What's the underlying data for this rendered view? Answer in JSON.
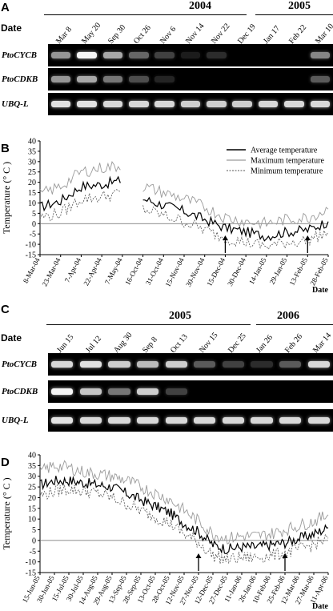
{
  "panelA": {
    "label": "A",
    "years": [
      "2004",
      "2005"
    ],
    "date_header": "Date",
    "dates": [
      "Mar 8",
      "May 20",
      "Sep 30",
      "Oct 26",
      "Nov 6",
      "Nov 14",
      "Nov 22",
      "Dec 19",
      "Jan 17",
      "Feb 22",
      "Mar 10"
    ],
    "genes": [
      "PtoCYCB",
      "PtoCDKB",
      "UBQ-L"
    ],
    "intensity": [
      [
        0.55,
        0.95,
        0.6,
        0.4,
        0.25,
        0.05,
        0.15,
        0.0,
        0.0,
        0.0,
        0.5
      ],
      [
        0.55,
        0.6,
        0.45,
        0.3,
        0.1,
        0.0,
        0.0,
        0.0,
        0.0,
        0.0,
        0.35
      ],
      [
        0.85,
        0.85,
        0.8,
        0.8,
        0.8,
        0.75,
        0.75,
        0.75,
        0.8,
        0.8,
        0.8
      ]
    ]
  },
  "panelB": {
    "label": "B",
    "ylabel": "Temperature (° C )",
    "xlabel": "Date",
    "yticks": [
      "40",
      "35",
      "30",
      "25",
      "20",
      "15",
      "10",
      "5",
      "0",
      "-5",
      "-10",
      "-15"
    ],
    "xticks": [
      "8-Mar-04",
      "23-Mar-04",
      "7-Apr-04",
      "22-Apr-04",
      "7-May-04",
      "16-Oct-04",
      "31-Oct-04",
      "15-Nov-04",
      "30-Nov-04",
      "15-Dec-04",
      "30-Dec-04",
      "14-Jan-05",
      "29-Jan-05",
      "13-Feb-05",
      "28-Feb-05"
    ],
    "legend": [
      "Average temperature",
      "Maximum temperature",
      "Minimum temperature"
    ]
  },
  "panelC": {
    "label": "C",
    "years": [
      "2005",
      "2006"
    ],
    "date_header": "Date",
    "dates": [
      "Jun 15",
      "Jul 12",
      "Aug 30",
      "Sep 8",
      "Oct 13",
      "Nov 15",
      "Dec 25",
      "Jan 26",
      "Feb 26",
      "Mar 14"
    ],
    "genes": [
      "PtoCYCB",
      "PtoCDKB",
      "UBQ-L"
    ],
    "intensity": [
      [
        0.8,
        0.85,
        0.75,
        0.65,
        0.75,
        0.35,
        0.25,
        0.15,
        0.35,
        0.8
      ],
      [
        0.95,
        0.7,
        0.45,
        0.75,
        0.25,
        0.0,
        0.0,
        0.0,
        0.0,
        0.0
      ],
      [
        0.85,
        0.8,
        0.8,
        0.8,
        0.8,
        0.8,
        0.8,
        0.8,
        0.8,
        0.8
      ]
    ]
  },
  "panelD": {
    "label": "D",
    "ylabel": "Temperature (° C )",
    "xlabel": "Date",
    "yticks": [
      "40",
      "35",
      "30",
      "25",
      "20",
      "15",
      "10",
      "5",
      "0",
      "-5",
      "-10",
      "-15"
    ],
    "xticks": [
      "15-Jun-05",
      "30-Jun-05",
      "15-Jul-05",
      "30-Jul-05",
      "14-Aug-05",
      "29-Aug-05",
      "13-Sep-05",
      "28-Sep-05",
      "13-Oct-05",
      "28-Oct-05",
      "12-Nov-05",
      "27-Nov-05",
      "12-Dec-05",
      "27-Dec-05",
      "11-Jan-06",
      "26-Jan-06",
      "10-Feb-06",
      "25-Feb-06",
      "12-Mar-06",
      "27-Mar-06",
      "11-Apr-06"
    ]
  },
  "chart_data": [
    {
      "type": "line",
      "ylim": [
        -15,
        40
      ],
      "grid": false,
      "legend_position": "top-right",
      "series": [
        {
          "name": "Average temperature",
          "x": [
            "8-Mar-04",
            "23-Mar-04",
            "7-Apr-04",
            "22-Apr-04",
            "7-May-04",
            "16-Oct-04",
            "31-Oct-04",
            "15-Nov-04",
            "30-Nov-04",
            "15-Dec-04",
            "30-Dec-04",
            "14-Jan-05",
            "29-Jan-05",
            "13-Feb-05",
            "28-Feb-05"
          ],
          "values": [
            8,
            11,
            18,
            19,
            21,
            12,
            9,
            6,
            2,
            -2,
            -4,
            -6,
            -4,
            -3,
            1
          ]
        },
        {
          "name": "Maximum temperature",
          "x": [
            "8-Mar-04",
            "23-Mar-04",
            "7-Apr-04",
            "22-Apr-04",
            "7-May-04",
            "16-Oct-04",
            "31-Oct-04",
            "15-Nov-04",
            "30-Nov-04",
            "15-Dec-04",
            "30-Dec-04",
            "14-Jan-05",
            "29-Jan-05",
            "13-Feb-05",
            "28-Feb-05"
          ],
          "values": [
            14,
            18,
            25,
            27,
            28,
            18,
            15,
            12,
            8,
            3,
            1,
            0,
            2,
            3,
            7
          ]
        },
        {
          "name": "Minimum temperature",
          "x": [
            "8-Mar-04",
            "23-Mar-04",
            "7-Apr-04",
            "22-Apr-04",
            "7-May-04",
            "16-Oct-04",
            "31-Oct-04",
            "15-Nov-04",
            "30-Nov-04",
            "15-Dec-04",
            "30-Dec-04",
            "14-Jan-05",
            "29-Jan-05",
            "13-Feb-05",
            "28-Feb-05"
          ],
          "values": [
            3,
            5,
            12,
            13,
            15,
            7,
            4,
            1,
            -3,
            -7,
            -9,
            -11,
            -9,
            -8,
            -4
          ]
        }
      ],
      "arrows_at": [
        "15-Dec-04",
        "13-Feb-05"
      ]
    },
    {
      "type": "line",
      "ylim": [
        -15,
        40
      ],
      "grid": false,
      "series": [
        {
          "name": "Average temperature",
          "x": [
            "15-Jun-05",
            "30-Jun-05",
            "15-Jul-05",
            "30-Jul-05",
            "14-Aug-05",
            "29-Aug-05",
            "13-Sep-05",
            "28-Sep-05",
            "13-Oct-05",
            "28-Oct-05",
            "12-Nov-05",
            "27-Nov-05",
            "12-Dec-05",
            "27-Dec-05",
            "11-Jan-06",
            "26-Jan-06",
            "10-Feb-06",
            "25-Feb-06",
            "12-Mar-06",
            "27-Mar-06",
            "11-Apr-06"
          ],
          "values": [
            26,
            28,
            28,
            27,
            26,
            25,
            22,
            19,
            16,
            13,
            8,
            4,
            -2,
            -4,
            -3,
            -3,
            -2,
            -1,
            1,
            3,
            6
          ]
        },
        {
          "name": "Maximum temperature",
          "x": [
            "15-Jun-05",
            "30-Jun-05",
            "15-Jul-05",
            "30-Jul-05",
            "14-Aug-05",
            "29-Aug-05",
            "13-Sep-05",
            "28-Sep-05",
            "13-Oct-05",
            "28-Oct-05",
            "12-Nov-05",
            "27-Nov-05",
            "12-Dec-05",
            "27-Dec-05",
            "11-Jan-06",
            "26-Jan-06",
            "10-Feb-06",
            "25-Feb-06",
            "12-Mar-06",
            "27-Mar-06",
            "11-Apr-06"
          ],
          "values": [
            32,
            35,
            34,
            32,
            31,
            30,
            28,
            25,
            22,
            19,
            14,
            9,
            3,
            1,
            2,
            2,
            3,
            5,
            7,
            9,
            12
          ]
        },
        {
          "name": "Minimum temperature",
          "x": [
            "15-Jun-05",
            "30-Jun-05",
            "15-Jul-05",
            "30-Jul-05",
            "14-Aug-05",
            "29-Aug-05",
            "13-Sep-05",
            "28-Sep-05",
            "13-Oct-05",
            "28-Oct-05",
            "12-Nov-05",
            "27-Nov-05",
            "12-Dec-05",
            "27-Dec-05",
            "11-Jan-06",
            "26-Jan-06",
            "10-Feb-06",
            "25-Feb-06",
            "12-Mar-06",
            "27-Mar-06",
            "11-Apr-06"
          ],
          "values": [
            21,
            23,
            24,
            23,
            22,
            20,
            17,
            14,
            11,
            8,
            3,
            -1,
            -7,
            -9,
            -8,
            -8,
            -7,
            -6,
            -4,
            -2,
            1
          ]
        }
      ],
      "arrows_at": [
        "27-Nov-05",
        "25-Feb-06"
      ]
    }
  ]
}
